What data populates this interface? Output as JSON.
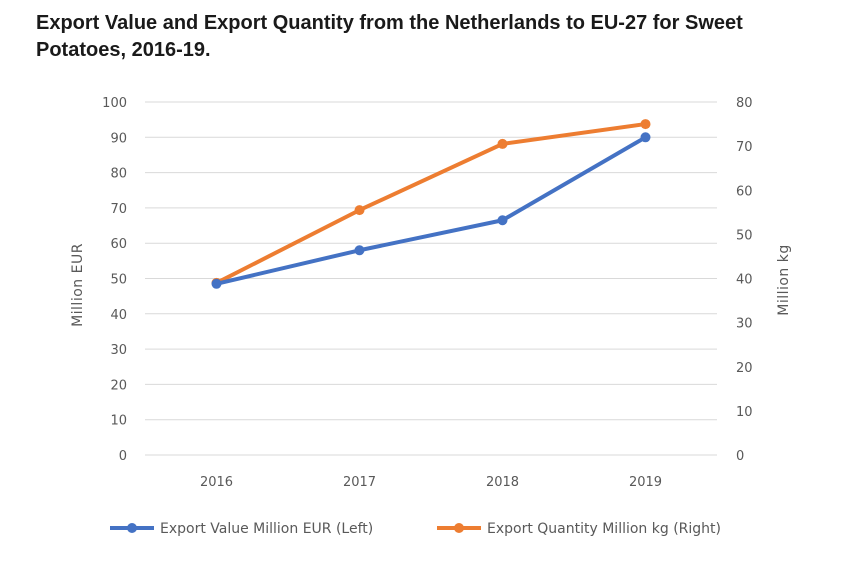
{
  "title": "Export Value and Export Quantity from the Netherlands to EU-27 for Sweet Potatoes, 2016-19.",
  "chart_data": {
    "type": "line",
    "categories": [
      "2016",
      "2017",
      "2018",
      "2019"
    ],
    "y_left": {
      "label": "Million EUR",
      "ylim": [
        0,
        100
      ],
      "ticks": [
        "0",
        "10",
        "20",
        "30",
        "40",
        "50",
        "60",
        "70",
        "80",
        "90",
        "100"
      ]
    },
    "y_right": {
      "label": "Million kg",
      "ylim": [
        0,
        80
      ],
      "ticks": [
        "0",
        "10",
        "20",
        "30",
        "40",
        "50",
        "60",
        "70",
        "80"
      ]
    },
    "series": [
      {
        "name": "Export Value Million EUR (Left)",
        "axis": "left",
        "color": "#4472C4",
        "values": [
          48.5,
          58,
          66.5,
          90
        ]
      },
      {
        "name": "Export Quantity Million kg (Right)",
        "axis": "right",
        "color": "#ED7D31",
        "values": [
          39,
          55.5,
          70.5,
          75
        ]
      }
    ],
    "grid": true,
    "legend_position": "bottom"
  }
}
